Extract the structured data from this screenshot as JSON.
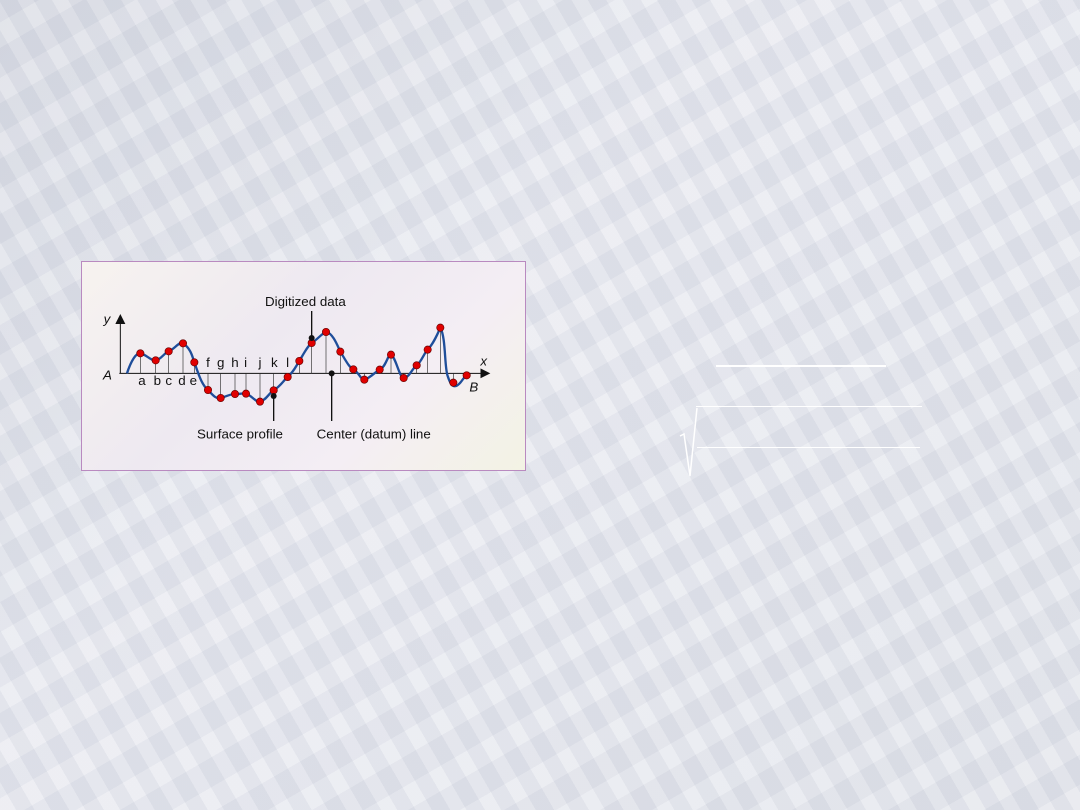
{
  "figure": {
    "title": "Digitized data",
    "y_axis": "y",
    "x_axis": "x",
    "start_label": "A",
    "end_label": "B",
    "point_labels": [
      "a",
      "b",
      "c",
      "d",
      "e",
      "f",
      "g",
      "h",
      "i",
      "j",
      "k",
      "l"
    ],
    "callouts": {
      "surface_profile": "Surface profile",
      "center_line": "Center (datum) line"
    },
    "colors": {
      "profile": "#1f4e9a",
      "points": "#e00000",
      "frame": "#b98ac0"
    }
  },
  "formula": {
    "icon": "square-root-icon"
  }
}
